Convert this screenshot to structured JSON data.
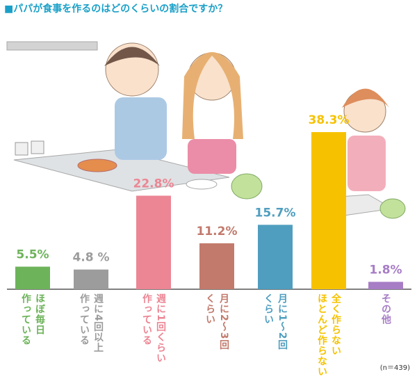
{
  "chart_data": {
    "type": "bar",
    "title": "■パパが食事を作るのはどのくらいの割合ですか？",
    "note": "(n＝439)",
    "categories": [
      "ほぼ毎日\n作っている",
      "週に4回以上\n作っている",
      "週に1回くらい\n作っている",
      "月に2〜3回\nくらい",
      "月に1〜2回\nくらい",
      "全く作らない\nほとんど作らない",
      "その他"
    ],
    "values": [
      5.5,
      4.8,
      22.8,
      11.2,
      15.7,
      38.3,
      1.8
    ],
    "value_labels": [
      "5.5%",
      "4.8 %",
      "22.8%",
      "11.2%",
      "15.7%",
      "38.3%",
      "1.8%"
    ],
    "colors": [
      "#6db35a",
      "#9c9c9c",
      "#ec8694",
      "#c27a6c",
      "#4f9ebf",
      "#f6c200",
      "#a77dc6"
    ]
  }
}
